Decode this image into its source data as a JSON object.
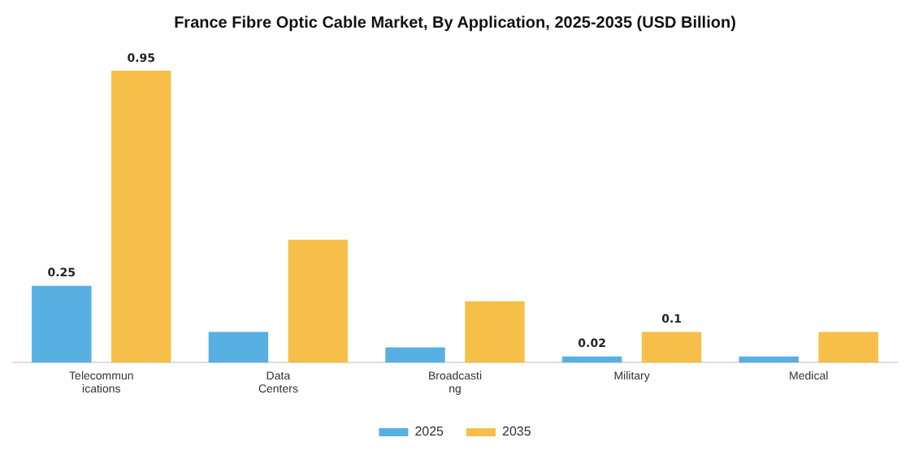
{
  "chart_data": {
    "type": "bar",
    "title": "France Fibre Optic Cable Market, By Application, 2025-2035 (USD Billion)",
    "categories": [
      "Telecommunications",
      "Data Centers",
      "Broadcasting",
      "Military",
      "Medical"
    ],
    "series": [
      {
        "name": "2025",
        "color": "#58b0e2",
        "values": [
          0.25,
          0.1,
          0.05,
          0.02,
          0.02
        ],
        "value_labels": [
          "0.25",
          null,
          null,
          "0.02",
          null
        ]
      },
      {
        "name": "2035",
        "color": "#f5bf4a",
        "values": [
          0.95,
          0.4,
          0.2,
          0.1,
          0.1
        ],
        "value_labels": [
          "0.95",
          null,
          null,
          "0.1",
          null
        ]
      }
    ],
    "tick_labels": "x",
    "legend": "bottom"
  }
}
